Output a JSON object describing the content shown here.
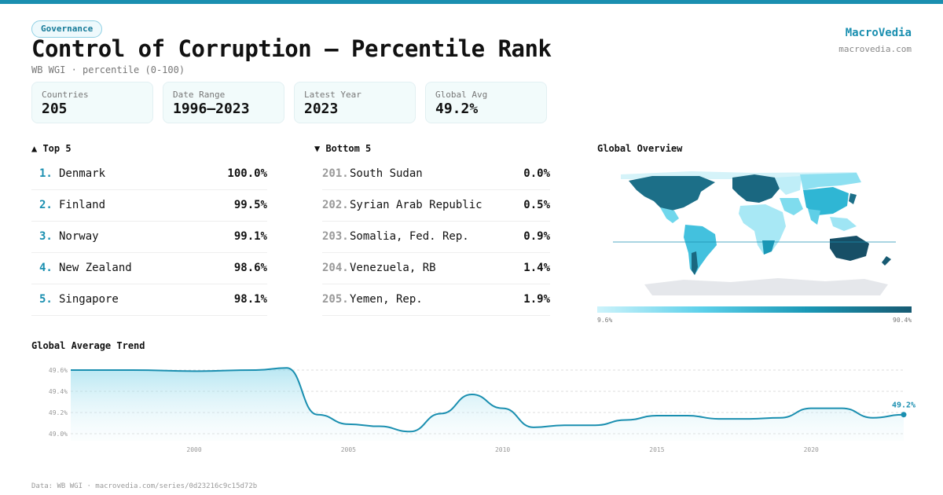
{
  "header": {
    "badge": "Governance",
    "title": "Control of Corruption — Percentile Rank",
    "subtitle": "WB WGI · percentile (0-100)",
    "brand": "MacroVedia",
    "brand_url": "macrovedia.com"
  },
  "stats": [
    {
      "label": "Countries",
      "value": "205"
    },
    {
      "label": "Date Range",
      "value": "1996–2023"
    },
    {
      "label": "Latest Year",
      "value": "2023"
    },
    {
      "label": "Global Avg",
      "value": "49.2%"
    }
  ],
  "top5": {
    "heading": "▲ Top 5",
    "items": [
      {
        "rank": "1.",
        "name": "Denmark",
        "value": "100.0%"
      },
      {
        "rank": "2.",
        "name": "Finland",
        "value": "99.5%"
      },
      {
        "rank": "3.",
        "name": "Norway",
        "value": "99.1%"
      },
      {
        "rank": "4.",
        "name": "New Zealand",
        "value": "98.6%"
      },
      {
        "rank": "5.",
        "name": "Singapore",
        "value": "98.1%"
      }
    ]
  },
  "bottom5": {
    "heading": "▼ Bottom 5",
    "items": [
      {
        "rank": "201.",
        "name": "South Sudan",
        "value": "0.0%"
      },
      {
        "rank": "202.",
        "name": "Syrian Arab Republic",
        "value": "0.5%"
      },
      {
        "rank": "203.",
        "name": "Somalia, Fed. Rep.",
        "value": "0.9%"
      },
      {
        "rank": "204.",
        "name": "Venezuela, RB",
        "value": "1.4%"
      },
      {
        "rank": "205.",
        "name": "Yemen, Rep.",
        "value": "1.9%"
      }
    ]
  },
  "map": {
    "heading": "Global Overview",
    "scale_min": "9.6%",
    "scale_max": "90.4%",
    "colors": {
      "low": "#cdf3fb",
      "mid": "#1a98b6",
      "high": "#175a72",
      "no_data": "#e5e7eb"
    }
  },
  "chart_data": {
    "type": "area",
    "title": "Global Average Trend",
    "x": [
      1996,
      1998,
      2000,
      2002,
      2003,
      2004,
      2005,
      2006,
      2007,
      2008,
      2009,
      2010,
      2011,
      2012,
      2013,
      2014,
      2015,
      2016,
      2017,
      2018,
      2019,
      2020,
      2021,
      2022,
      2023
    ],
    "values": [
      49.6,
      49.6,
      49.59,
      49.6,
      49.62,
      49.18,
      49.09,
      49.07,
      49.02,
      49.19,
      49.37,
      49.24,
      49.06,
      49.08,
      49.08,
      49.13,
      49.17,
      49.17,
      49.14,
      49.14,
      49.15,
      49.24,
      49.24,
      49.15,
      49.18
    ],
    "ylim": [
      49.0,
      49.6
    ],
    "yticks": [
      "49.0%",
      "49.2%",
      "49.4%",
      "49.6%"
    ],
    "xticks": [
      "2000",
      "2005",
      "2010",
      "2015",
      "2020"
    ],
    "end_label": "49.2%",
    "grid": true,
    "color": "#1a8fb0"
  },
  "footer": "Data: WB WGI · macrovedia.com/series/0d23216c9c15d72b"
}
